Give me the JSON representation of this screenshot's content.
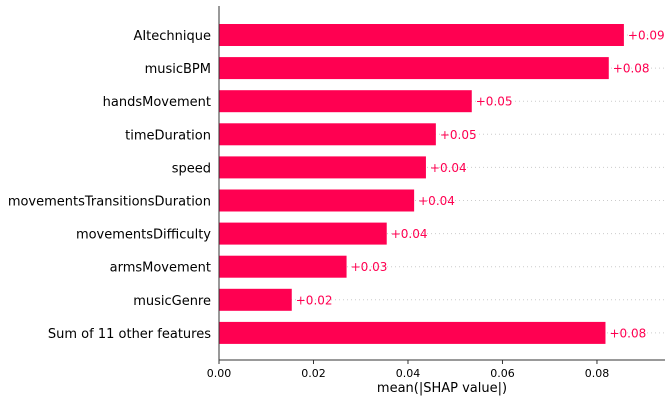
{
  "chart_data": {
    "type": "bar",
    "orientation": "horizontal",
    "categories": [
      "AItechnique",
      "musicBPM",
      "handsMovement",
      "timeDuration",
      "speed",
      "movementsTransitionsDuration",
      "movementsDifficulty",
      "armsMovement",
      "musicGenre",
      "Sum of 11 other features"
    ],
    "values": [
      0.0857,
      0.0825,
      0.0535,
      0.0459,
      0.0438,
      0.0413,
      0.0355,
      0.027,
      0.0154,
      0.0818
    ],
    "value_labels": [
      "+0.09",
      "+0.08",
      "+0.05",
      "+0.05",
      "+0.04",
      "+0.04",
      "+0.04",
      "+0.03",
      "+0.02",
      "+0.08"
    ],
    "xlabel": "mean(|SHAP value|)",
    "ylabel": "",
    "xlim": [
      0,
      0.0944
    ],
    "xticks": [
      0.0,
      0.02,
      0.04,
      0.06,
      0.08
    ],
    "xtick_labels": [
      "0.00",
      "0.02",
      "0.04",
      "0.06",
      "0.08"
    ],
    "grid": "horizontal dotted lines per bar",
    "colors": {
      "bar": "#ff0051",
      "value_label": "#ff0051",
      "grid": "#cccccc",
      "axis": "#333333"
    }
  }
}
